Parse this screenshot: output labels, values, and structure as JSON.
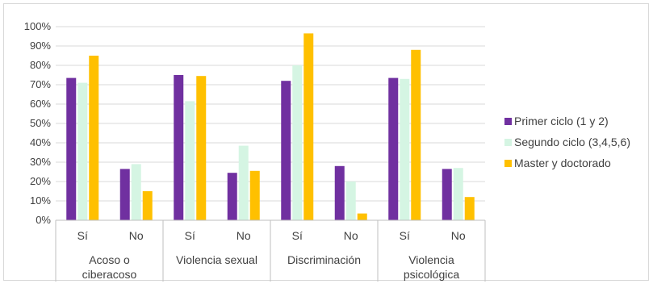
{
  "chart_data": {
    "type": "bar",
    "title": "",
    "xlabel": "",
    "ylabel": "",
    "ylim": [
      0,
      100
    ],
    "yticks": [
      "0%",
      "10%",
      "20%",
      "30%",
      "40%",
      "50%",
      "60%",
      "70%",
      "80%",
      "90%",
      "100%"
    ],
    "groups": [
      {
        "name": "Acoso o ciberacoso",
        "lines": [
          "Acoso o",
          "ciberacoso"
        ],
        "categories": [
          "Sí",
          "No"
        ]
      },
      {
        "name": "Violencia sexual",
        "lines": [
          "Violencia sexual"
        ],
        "categories": [
          "Sí",
          "No"
        ]
      },
      {
        "name": "Discriminación",
        "lines": [
          "Discriminación"
        ],
        "categories": [
          "Sí",
          "No"
        ]
      },
      {
        "name": "Violencia psicológica",
        "lines": [
          "Violencia",
          "psicológica"
        ],
        "categories": [
          "Sí",
          "No"
        ]
      }
    ],
    "categories": [
      "Sí",
      "No",
      "Sí",
      "No",
      "Sí",
      "No",
      "Sí",
      "No"
    ],
    "series": [
      {
        "name": "Primer ciclo (1 y 2)",
        "color": "#7030a0",
        "values": [
          73.5,
          26.5,
          75,
          24.5,
          72,
          28,
          73.5,
          26.5
        ]
      },
      {
        "name": "Segundo ciclo (3,4,5,6)",
        "color": "#d5f5e3",
        "values": [
          71,
          29,
          61.5,
          38.5,
          80,
          20,
          73,
          27
        ]
      },
      {
        "name": "Master y doctorado",
        "color": "#ffc000",
        "values": [
          85,
          15,
          74.5,
          25.5,
          96.5,
          3.5,
          88,
          12
        ]
      }
    ],
    "legend_position": "right",
    "grid": true
  }
}
